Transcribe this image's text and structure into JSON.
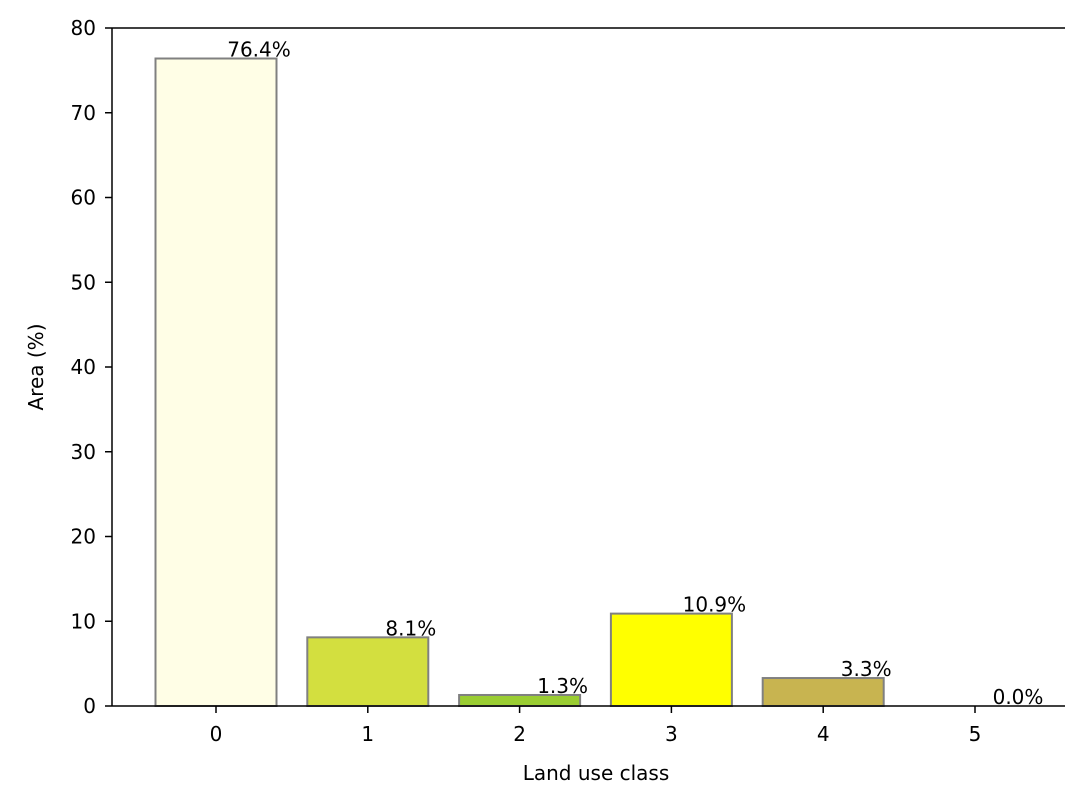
{
  "chart_data": {
    "type": "bar",
    "title": "",
    "xlabel": "Land use class",
    "ylabel": "Area (%)",
    "categories": [
      "0",
      "1",
      "2",
      "3",
      "4",
      "5"
    ],
    "values": [
      76.4,
      8.1,
      1.3,
      10.9,
      3.3,
      0.0
    ],
    "data_labels": [
      "76.4%",
      "8.1%",
      "1.3%",
      "10.9%",
      "3.3%",
      "0.0%"
    ],
    "bar_colors": [
      "#fffee6",
      "#d3df3f",
      "#9acd32",
      "#ffff00",
      "#c8b450",
      "#ffffff"
    ],
    "bar_edge_color": "#808080",
    "ylim": [
      0,
      80
    ],
    "yticks": [
      0,
      10,
      20,
      30,
      40,
      50,
      60,
      70,
      80
    ],
    "grid": false,
    "legend": "none"
  }
}
